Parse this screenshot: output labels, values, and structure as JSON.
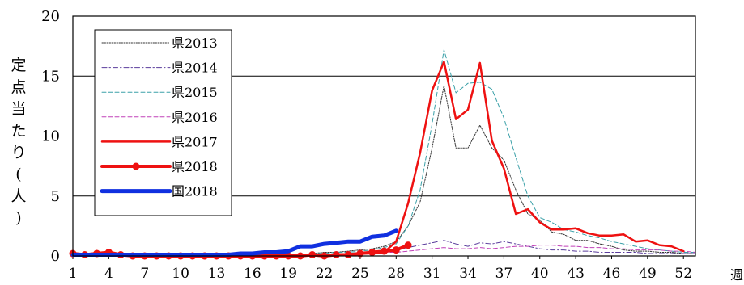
{
  "chart_data": {
    "type": "line",
    "ylabel": "定点当たり(人)",
    "xlabel": "週",
    "ylim": [
      0,
      20
    ],
    "yticks": [
      0,
      5,
      10,
      15,
      20
    ],
    "xlim": [
      1,
      53
    ],
    "xticks": [
      1,
      4,
      7,
      10,
      13,
      16,
      19,
      22,
      25,
      28,
      31,
      34,
      37,
      40,
      43,
      46,
      49,
      52
    ],
    "grid": "horizontal",
    "legend_position": "top-left",
    "series": [
      {
        "name": "県2013",
        "color": "#333333",
        "style": "dotted",
        "x": [
          1,
          2,
          3,
          4,
          5,
          6,
          7,
          8,
          9,
          10,
          11,
          12,
          13,
          14,
          15,
          16,
          17,
          18,
          19,
          20,
          21,
          22,
          23,
          24,
          25,
          26,
          27,
          28,
          29,
          30,
          31,
          32,
          33,
          34,
          35,
          36,
          37,
          38,
          39,
          40,
          41,
          42,
          43,
          44,
          45,
          46,
          47,
          48,
          49,
          50,
          51,
          52,
          53
        ],
        "y": [
          0.1,
          0.1,
          0.1,
          0.1,
          0.1,
          0.1,
          0.1,
          0.1,
          0.1,
          0.1,
          0.1,
          0.1,
          0.1,
          0.1,
          0.1,
          0.1,
          0.1,
          0.1,
          0.1,
          0.1,
          0.2,
          0.3,
          0.3,
          0.4,
          0.5,
          0.6,
          0.8,
          1.2,
          2.5,
          4.5,
          9.0,
          14.2,
          9.0,
          9.0,
          10.9,
          9.0,
          8.0,
          5.5,
          3.5,
          3.0,
          2.0,
          1.8,
          1.3,
          1.3,
          1.0,
          0.8,
          0.5,
          0.4,
          0.4,
          0.3,
          0.3,
          0.2,
          0.2
        ]
      },
      {
        "name": "県2014",
        "color": "#5a3c9c",
        "style": "dashdot",
        "x": [
          1,
          2,
          3,
          4,
          5,
          6,
          7,
          8,
          9,
          10,
          11,
          12,
          13,
          14,
          15,
          16,
          17,
          18,
          19,
          20,
          21,
          22,
          23,
          24,
          25,
          26,
          27,
          28,
          29,
          30,
          31,
          32,
          33,
          34,
          35,
          36,
          37,
          38,
          39,
          40,
          41,
          42,
          43,
          44,
          45,
          46,
          47,
          48,
          49,
          50,
          51,
          52,
          53
        ],
        "y": [
          0.1,
          0.1,
          0.1,
          0.1,
          0.1,
          0.1,
          0.1,
          0.1,
          0.1,
          0.1,
          0.1,
          0.1,
          0.1,
          0.1,
          0.1,
          0.1,
          0.1,
          0.1,
          0.1,
          0.1,
          0.1,
          0.1,
          0.1,
          0.2,
          0.2,
          0.3,
          0.4,
          0.5,
          0.7,
          0.9,
          1.1,
          1.3,
          1.0,
          0.8,
          1.1,
          1.0,
          1.2,
          1.0,
          0.8,
          0.6,
          0.5,
          0.5,
          0.4,
          0.4,
          0.3,
          0.3,
          0.3,
          0.3,
          0.2,
          0.2,
          0.2,
          0.2,
          0.2
        ]
      },
      {
        "name": "県2015",
        "color": "#3aa0a8",
        "style": "dashed",
        "x": [
          1,
          2,
          3,
          4,
          5,
          6,
          7,
          8,
          9,
          10,
          11,
          12,
          13,
          14,
          15,
          16,
          17,
          18,
          19,
          20,
          21,
          22,
          23,
          24,
          25,
          26,
          27,
          28,
          29,
          30,
          31,
          32,
          33,
          34,
          35,
          36,
          37,
          38,
          39,
          40,
          41,
          42,
          43,
          44,
          45,
          46,
          47,
          48,
          49,
          50,
          51,
          52,
          53
        ],
        "y": [
          0.1,
          0.1,
          0.1,
          0.1,
          0.1,
          0.1,
          0.1,
          0.1,
          0.1,
          0.1,
          0.1,
          0.1,
          0.1,
          0.1,
          0.1,
          0.1,
          0.1,
          0.1,
          0.1,
          0.1,
          0.2,
          0.2,
          0.3,
          0.3,
          0.4,
          0.5,
          0.7,
          1.0,
          2.5,
          5.5,
          11.0,
          17.2,
          13.6,
          14.4,
          14.5,
          13.9,
          11.5,
          8.2,
          5.0,
          3.2,
          2.8,
          2.2,
          2.0,
          1.7,
          1.5,
          1.2,
          1.0,
          0.8,
          0.6,
          0.5,
          0.4,
          0.3,
          0.3
        ]
      },
      {
        "name": "県2016",
        "color": "#c040b8",
        "style": "dashed",
        "x": [
          1,
          2,
          3,
          4,
          5,
          6,
          7,
          8,
          9,
          10,
          11,
          12,
          13,
          14,
          15,
          16,
          17,
          18,
          19,
          20,
          21,
          22,
          23,
          24,
          25,
          26,
          27,
          28,
          29,
          30,
          31,
          32,
          33,
          34,
          35,
          36,
          37,
          38,
          39,
          40,
          41,
          42,
          43,
          44,
          45,
          46,
          47,
          48,
          49,
          50,
          51,
          52,
          53
        ],
        "y": [
          0.1,
          0.1,
          0.1,
          0.1,
          0.1,
          0.1,
          0.1,
          0.1,
          0.1,
          0.1,
          0.1,
          0.1,
          0.1,
          0.1,
          0.1,
          0.1,
          0.1,
          0.1,
          0.1,
          0.1,
          0.1,
          0.1,
          0.2,
          0.2,
          0.2,
          0.3,
          0.3,
          0.3,
          0.4,
          0.5,
          0.6,
          0.7,
          0.6,
          0.6,
          0.7,
          0.6,
          0.7,
          0.8,
          0.8,
          0.9,
          0.9,
          0.8,
          0.8,
          0.7,
          0.7,
          0.6,
          0.6,
          0.5,
          0.5,
          0.5,
          0.4,
          0.4,
          0.3
        ]
      },
      {
        "name": "県2017",
        "color": "#ee1111",
        "style": "solid",
        "x": [
          1,
          2,
          3,
          4,
          5,
          6,
          7,
          8,
          9,
          10,
          11,
          12,
          13,
          14,
          15,
          16,
          17,
          18,
          19,
          20,
          21,
          22,
          23,
          24,
          25,
          26,
          27,
          28,
          29,
          30,
          31,
          32,
          33,
          34,
          35,
          36,
          37,
          38,
          39,
          40,
          41,
          42,
          43,
          44,
          45,
          46,
          47,
          48,
          49,
          50,
          51,
          52
        ],
        "y": [
          0.1,
          0.1,
          0.1,
          0.1,
          0.1,
          0.1,
          0.1,
          0.1,
          0.1,
          0.1,
          0.1,
          0.1,
          0.1,
          0.1,
          0.1,
          0.1,
          0.1,
          0.1,
          0.1,
          0.1,
          0.1,
          0.1,
          0.1,
          0.1,
          0.2,
          0.2,
          0.3,
          1.2,
          4.4,
          8.6,
          13.8,
          16.2,
          11.4,
          12.2,
          16.1,
          9.6,
          7.3,
          3.5,
          3.9,
          2.8,
          2.2,
          2.2,
          2.3,
          1.9,
          1.7,
          1.7,
          1.8,
          1.2,
          1.3,
          0.9,
          0.8,
          0.4
        ]
      },
      {
        "name": "県2018",
        "color": "#ee1111",
        "style": "solid-marker",
        "x": [
          1,
          2,
          3,
          4,
          5,
          6,
          7,
          8,
          9,
          10,
          11,
          12,
          13,
          14,
          15,
          16,
          17,
          18,
          19,
          20,
          21,
          22,
          23,
          24,
          25,
          26,
          27,
          28,
          29
        ],
        "y": [
          0.2,
          0.1,
          0.2,
          0.3,
          0.1,
          0.0,
          0.0,
          0.0,
          0.0,
          0.0,
          0.0,
          0.0,
          0.0,
          0.0,
          0.0,
          0.0,
          0.0,
          0.0,
          0.0,
          0.0,
          0.1,
          0.0,
          0.1,
          0.1,
          0.2,
          0.3,
          0.4,
          0.5,
          0.9
        ]
      },
      {
        "name": "国2018",
        "color": "#1030e0",
        "style": "solid-thick",
        "x": [
          1,
          2,
          3,
          4,
          5,
          6,
          7,
          8,
          9,
          10,
          11,
          12,
          13,
          14,
          15,
          16,
          17,
          18,
          19,
          20,
          21,
          22,
          23,
          24,
          25,
          26,
          27,
          28
        ],
        "y": [
          0.1,
          0.1,
          0.1,
          0.1,
          0.1,
          0.1,
          0.1,
          0.1,
          0.1,
          0.1,
          0.1,
          0.1,
          0.1,
          0.1,
          0.2,
          0.2,
          0.3,
          0.3,
          0.4,
          0.8,
          0.8,
          1.0,
          1.1,
          1.2,
          1.2,
          1.6,
          1.7,
          2.1
        ]
      }
    ]
  }
}
